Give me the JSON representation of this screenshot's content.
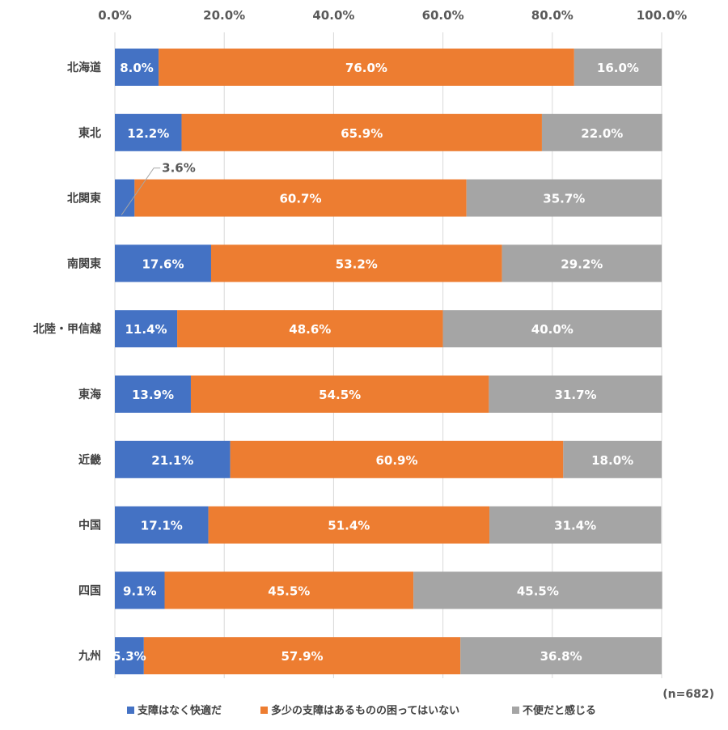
{
  "chart_data": {
    "type": "bar",
    "orientation": "horizontal",
    "stacked": true,
    "percent_stacked": true,
    "categories": [
      "北海道",
      "東北",
      "北関東",
      "南関東",
      "北陸・甲信越",
      "東海",
      "近畿",
      "中国",
      "四国",
      "九州"
    ],
    "series": [
      {
        "name": "支障はなく快適だ",
        "color": "#4472C4",
        "values": [
          8.0,
          12.2,
          3.6,
          17.6,
          11.4,
          13.9,
          21.1,
          17.1,
          9.1,
          5.3
        ]
      },
      {
        "name": "多少の支障はあるものの困ってはいない",
        "color": "#ED7D31",
        "values": [
          76.0,
          65.9,
          60.7,
          53.2,
          48.6,
          54.5,
          60.9,
          51.4,
          45.5,
          57.9
        ]
      },
      {
        "name": "不便だと感じる",
        "color": "#A5A5A5",
        "values": [
          16.0,
          22.0,
          35.7,
          29.2,
          40.0,
          31.7,
          18.0,
          31.4,
          45.5,
          36.8
        ]
      }
    ],
    "data_labels": [
      [
        "8.0%",
        "76.0%",
        "16.0%"
      ],
      [
        "12.2%",
        "65.9%",
        "22.0%"
      ],
      [
        "3.6%",
        "60.7%",
        "35.7%"
      ],
      [
        "17.6%",
        "53.2%",
        "29.2%"
      ],
      [
        "11.4%",
        "48.6%",
        "40.0%"
      ],
      [
        "13.9%",
        "54.5%",
        "31.7%"
      ],
      [
        "21.1%",
        "60.9%",
        "18.0%"
      ],
      [
        "17.1%",
        "51.4%",
        "31.4%"
      ],
      [
        "9.1%",
        "45.5%",
        "45.5%"
      ],
      [
        "5.3%",
        "57.9%",
        "36.8%"
      ]
    ],
    "x_ticks": [
      "0.0%",
      "20.0%",
      "40.0%",
      "60.0%",
      "80.0%",
      "100.0%"
    ],
    "xlim": [
      0,
      100
    ],
    "axis_position": "top",
    "grid": true,
    "legend_position": "bottom",
    "note": "(n=682)"
  }
}
